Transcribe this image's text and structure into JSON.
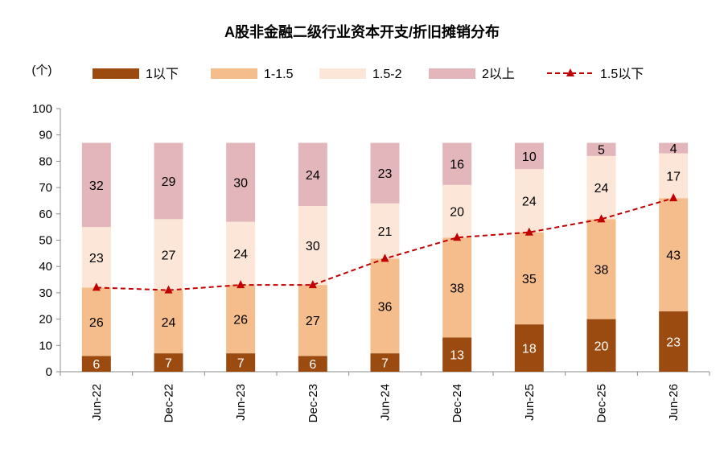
{
  "chart_data": {
    "type": "bar",
    "stacked": true,
    "title": "A股非金融二级行业资本开支/折旧摊销分布",
    "ylabel": "(个)",
    "ylim": [
      0,
      100
    ],
    "yticks": [
      0,
      10,
      20,
      30,
      40,
      50,
      60,
      70,
      80,
      90,
      100
    ],
    "categories": [
      "Jun-22",
      "Dec-22",
      "Jun-23",
      "Dec-23",
      "Jun-24",
      "Dec-24",
      "Jun-25",
      "Dec-25",
      "Jun-26"
    ],
    "series": [
      {
        "name": "1以下",
        "type": "bar",
        "color": "#9B4A10",
        "label_color": "#ffffff",
        "values": [
          6,
          7,
          7,
          6,
          7,
          13,
          18,
          20,
          23
        ]
      },
      {
        "name": "1-1.5",
        "type": "bar",
        "color": "#F5BD8B",
        "label_color": "#000000",
        "values": [
          26,
          24,
          26,
          27,
          36,
          38,
          35,
          38,
          43
        ]
      },
      {
        "name": "1.5-2",
        "type": "bar",
        "color": "#FCE6D8",
        "label_color": "#000000",
        "values": [
          23,
          27,
          24,
          30,
          21,
          20,
          24,
          24,
          17
        ]
      },
      {
        "name": "2以上",
        "type": "bar",
        "color": "#E2B6BA",
        "label_color": "#000000",
        "values": [
          32,
          29,
          30,
          24,
          23,
          16,
          10,
          5,
          4
        ]
      },
      {
        "name": "1.5以下",
        "type": "line",
        "color": "#C00000",
        "values": [
          32,
          31,
          33,
          33,
          43,
          51,
          53,
          58,
          66
        ]
      }
    ],
    "legend_position": "top",
    "grid": false
  }
}
